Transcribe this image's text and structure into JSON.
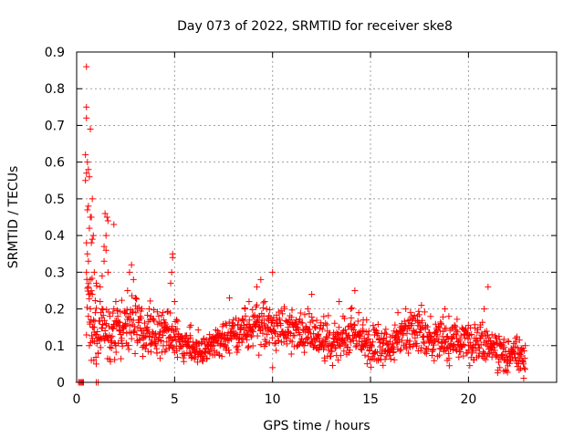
{
  "chart_data": {
    "type": "scatter",
    "title": "Day 073 of 2022, SRMTID for receiver ske8",
    "xlabel": "GPS time / hours",
    "ylabel": "SRMTID / TECUs",
    "xlim": [
      0,
      24.5
    ],
    "ylim": [
      0,
      0.9
    ],
    "x_ticks": [
      0,
      5,
      10,
      15,
      20
    ],
    "x_tick_labels": [
      "0",
      "5",
      "10",
      "15",
      "20"
    ],
    "y_ticks": [
      0,
      0.1,
      0.2,
      0.3,
      0.4,
      0.5,
      0.6,
      0.7,
      0.8,
      0.9
    ],
    "y_tick_labels": [
      "0",
      "0.1",
      "0.2",
      "0.3",
      "0.4",
      "0.5",
      "0.6",
      "0.7",
      "0.8",
      "0.9"
    ],
    "grid": true,
    "marker": "+",
    "color": "#ff0000",
    "series": [
      {
        "name": "SRMTID",
        "points": [
          [
            0.1,
            0.0
          ],
          [
            0.15,
            0.0
          ],
          [
            0.2,
            0.0
          ],
          [
            0.25,
            0.0
          ],
          [
            0.3,
            0.0
          ],
          [
            0.35,
            0.0
          ],
          [
            0.5,
            0.86
          ],
          [
            0.5,
            0.75
          ],
          [
            0.5,
            0.72
          ],
          [
            0.45,
            0.62
          ],
          [
            0.5,
            0.57
          ],
          [
            0.55,
            0.6
          ],
          [
            0.45,
            0.55
          ],
          [
            0.6,
            0.58
          ],
          [
            0.65,
            0.56
          ],
          [
            0.7,
            0.69
          ],
          [
            0.55,
            0.47
          ],
          [
            0.6,
            0.48
          ],
          [
            0.7,
            0.45
          ],
          [
            0.75,
            0.45
          ],
          [
            0.8,
            0.5
          ],
          [
            0.8,
            0.39
          ],
          [
            0.75,
            0.38
          ],
          [
            0.85,
            0.4
          ],
          [
            0.65,
            0.42
          ],
          [
            0.5,
            0.38
          ],
          [
            0.55,
            0.35
          ],
          [
            0.6,
            0.33
          ],
          [
            0.5,
            0.3
          ],
          [
            0.7,
            0.28
          ],
          [
            0.9,
            0.3
          ],
          [
            1.0,
            0.27
          ],
          [
            0.8,
            0.24
          ],
          [
            0.7,
            0.2
          ],
          [
            0.6,
            0.18
          ],
          [
            0.9,
            0.15
          ],
          [
            1.0,
            0.13
          ],
          [
            0.65,
            0.1
          ],
          [
            0.75,
            0.06
          ],
          [
            0.8,
            0.12
          ],
          [
            1.0,
            0.05
          ],
          [
            1.1,
            0.08
          ],
          [
            1.0,
            0.0
          ],
          [
            1.1,
            0.0
          ],
          [
            0.95,
            0.19
          ],
          [
            1.2,
            0.26
          ],
          [
            1.3,
            0.29
          ],
          [
            1.2,
            0.22
          ],
          [
            1.4,
            0.37
          ],
          [
            1.5,
            0.36
          ],
          [
            1.45,
            0.46
          ],
          [
            1.55,
            0.45
          ],
          [
            1.6,
            0.44
          ],
          [
            1.5,
            0.4
          ],
          [
            1.4,
            0.33
          ],
          [
            1.6,
            0.3
          ],
          [
            1.3,
            0.2
          ],
          [
            1.5,
            0.16
          ],
          [
            1.7,
            0.18
          ],
          [
            1.8,
            0.15
          ],
          [
            1.9,
            0.43
          ],
          [
            1.9,
            0.2
          ],
          [
            2.0,
            0.22
          ],
          [
            2.1,
            0.18
          ],
          [
            2.2,
            0.14
          ],
          [
            2.0,
            0.1
          ],
          [
            2.3,
            0.12
          ],
          [
            2.5,
            0.16
          ],
          [
            2.6,
            0.25
          ],
          [
            2.7,
            0.3
          ],
          [
            2.8,
            0.32
          ],
          [
            2.9,
            0.28
          ],
          [
            3.0,
            0.23
          ],
          [
            3.1,
            0.2
          ],
          [
            3.2,
            0.17
          ],
          [
            3.3,
            0.14
          ],
          [
            3.4,
            0.12
          ],
          [
            3.5,
            0.1
          ],
          [
            3.6,
            0.15
          ],
          [
            3.7,
            0.2
          ],
          [
            3.8,
            0.18
          ],
          [
            3.9,
            0.13
          ],
          [
            4.0,
            0.1
          ],
          [
            4.1,
            0.08
          ],
          [
            4.2,
            0.13
          ],
          [
            4.3,
            0.16
          ],
          [
            4.4,
            0.19
          ],
          [
            4.5,
            0.15
          ],
          [
            4.6,
            0.11
          ],
          [
            4.7,
            0.1
          ],
          [
            4.8,
            0.27
          ],
          [
            4.85,
            0.3
          ],
          [
            4.9,
            0.34
          ],
          [
            4.9,
            0.35
          ],
          [
            5.0,
            0.22
          ],
          [
            5.1,
            0.17
          ],
          [
            5.2,
            0.13
          ],
          [
            5.4,
            0.12
          ],
          [
            5.6,
            0.1
          ],
          [
            5.8,
            0.08
          ],
          [
            6.0,
            0.09
          ],
          [
            6.2,
            0.07
          ],
          [
            6.4,
            0.11
          ],
          [
            6.6,
            0.09
          ],
          [
            6.8,
            0.12
          ],
          [
            7.0,
            0.1
          ],
          [
            7.2,
            0.14
          ],
          [
            7.4,
            0.12
          ],
          [
            7.6,
            0.16
          ],
          [
            7.8,
            0.23
          ],
          [
            8.0,
            0.17
          ],
          [
            8.2,
            0.13
          ],
          [
            8.4,
            0.15
          ],
          [
            8.6,
            0.2
          ],
          [
            8.8,
            0.22
          ],
          [
            9.0,
            0.18
          ],
          [
            9.2,
            0.26
          ],
          [
            9.4,
            0.28
          ],
          [
            9.6,
            0.22
          ],
          [
            9.8,
            0.18
          ],
          [
            10.0,
            0.3
          ],
          [
            10.0,
            0.04
          ],
          [
            10.2,
            0.16
          ],
          [
            10.4,
            0.13
          ],
          [
            10.6,
            0.2
          ],
          [
            10.8,
            0.15
          ],
          [
            11.0,
            0.11
          ],
          [
            11.2,
            0.17
          ],
          [
            11.4,
            0.13
          ],
          [
            11.6,
            0.1
          ],
          [
            11.8,
            0.2
          ],
          [
            12.0,
            0.24
          ],
          [
            12.2,
            0.15
          ],
          [
            12.4,
            0.11
          ],
          [
            12.6,
            0.09
          ],
          [
            12.8,
            0.14
          ],
          [
            13.0,
            0.1
          ],
          [
            13.2,
            0.13
          ],
          [
            13.4,
            0.22
          ],
          [
            13.6,
            0.18
          ],
          [
            13.8,
            0.12
          ],
          [
            14.0,
            0.2
          ],
          [
            14.2,
            0.25
          ],
          [
            14.4,
            0.19
          ],
          [
            14.6,
            0.14
          ],
          [
            14.8,
            0.17
          ],
          [
            15.0,
            0.1
          ],
          [
            15.2,
            0.08
          ],
          [
            15.4,
            0.06
          ],
          [
            15.6,
            0.09
          ],
          [
            15.8,
            0.07
          ],
          [
            16.0,
            0.11
          ],
          [
            16.2,
            0.14
          ],
          [
            16.4,
            0.19
          ],
          [
            16.6,
            0.16
          ],
          [
            16.8,
            0.2
          ],
          [
            17.0,
            0.17
          ],
          [
            17.2,
            0.14
          ],
          [
            17.4,
            0.18
          ],
          [
            17.6,
            0.21
          ],
          [
            17.8,
            0.15
          ],
          [
            18.0,
            0.11
          ],
          [
            18.2,
            0.09
          ],
          [
            18.4,
            0.13
          ],
          [
            18.6,
            0.16
          ],
          [
            18.8,
            0.2
          ],
          [
            19.0,
            0.18
          ],
          [
            19.2,
            0.15
          ],
          [
            19.4,
            0.12
          ],
          [
            19.6,
            0.1
          ],
          [
            19.8,
            0.13
          ],
          [
            20.0,
            0.1
          ],
          [
            20.2,
            0.08
          ],
          [
            20.4,
            0.12
          ],
          [
            20.6,
            0.15
          ],
          [
            20.8,
            0.2
          ],
          [
            21.0,
            0.26
          ],
          [
            21.2,
            0.13
          ],
          [
            21.4,
            0.07
          ],
          [
            21.6,
            0.04
          ],
          [
            21.8,
            0.03
          ],
          [
            22.0,
            0.06
          ],
          [
            22.2,
            0.09
          ],
          [
            22.4,
            0.12
          ],
          [
            22.6,
            0.08
          ],
          [
            22.8,
            0.05
          ],
          [
            22.9,
            0.1
          ]
        ]
      }
    ],
    "dense_band": {
      "description": "dense cloud of points",
      "x_start": 0.5,
      "x_end": 22.9,
      "x_step": 0.018,
      "centers": [
        [
          0.5,
          0.2
        ],
        [
          1.0,
          0.15
        ],
        [
          1.5,
          0.14
        ],
        [
          2.0,
          0.13
        ],
        [
          3.0,
          0.16
        ],
        [
          4.0,
          0.14
        ],
        [
          5.0,
          0.12
        ],
        [
          6.0,
          0.09
        ],
        [
          7.0,
          0.1
        ],
        [
          8.0,
          0.13
        ],
        [
          9.0,
          0.16
        ],
        [
          10.0,
          0.15
        ],
        [
          11.0,
          0.14
        ],
        [
          12.0,
          0.13
        ],
        [
          13.0,
          0.11
        ],
        [
          14.0,
          0.14
        ],
        [
          15.0,
          0.1
        ],
        [
          16.0,
          0.1
        ],
        [
          17.0,
          0.14
        ],
        [
          18.0,
          0.12
        ],
        [
          19.0,
          0.12
        ],
        [
          20.0,
          0.11
        ],
        [
          21.0,
          0.1
        ],
        [
          22.0,
          0.07
        ],
        [
          22.9,
          0.07
        ]
      ],
      "spreads": [
        [
          0.5,
          0.09
        ],
        [
          2.0,
          0.07
        ],
        [
          5.0,
          0.05
        ],
        [
          7.0,
          0.04
        ],
        [
          9.0,
          0.06
        ],
        [
          12.0,
          0.05
        ],
        [
          15.0,
          0.05
        ],
        [
          18.0,
          0.05
        ],
        [
          21.0,
          0.05
        ],
        [
          22.9,
          0.04
        ]
      ]
    }
  }
}
